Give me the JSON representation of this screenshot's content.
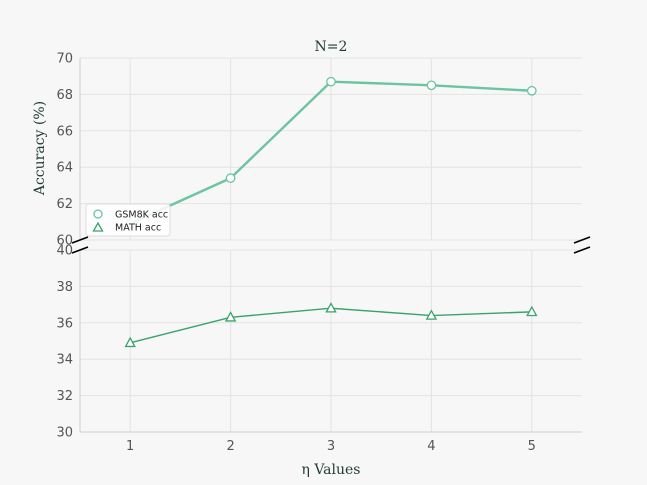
{
  "chart_data": {
    "type": "line",
    "title": "N=2",
    "xlabel": "η Values",
    "ylabel": "Accuracy (%)",
    "x": [
      1,
      2,
      3,
      4,
      5
    ],
    "xlim": [
      0.5,
      5.5
    ],
    "grid": true,
    "axis_break": true,
    "legend_position": "lower-left",
    "panels": [
      {
        "id": "top",
        "ylim": [
          60,
          70
        ],
        "yticks": [
          60,
          62,
          64,
          66,
          68,
          70
        ],
        "series": [
          {
            "name": "GSM8K acc",
            "marker": "circle",
            "color": "#6cc4a1",
            "values": [
              60.9,
              63.4,
              68.7,
              68.5,
              68.2
            ]
          }
        ]
      },
      {
        "id": "bottom",
        "ylim": [
          30,
          40
        ],
        "yticks": [
          30,
          32,
          34,
          36,
          38,
          40
        ],
        "series": [
          {
            "name": "MATH acc",
            "marker": "triangle",
            "color": "#3aa36c",
            "values": [
              34.9,
              36.3,
              36.8,
              36.4,
              36.6
            ]
          }
        ]
      }
    ],
    "legend": [
      "GSM8K acc",
      "MATH acc"
    ]
  }
}
